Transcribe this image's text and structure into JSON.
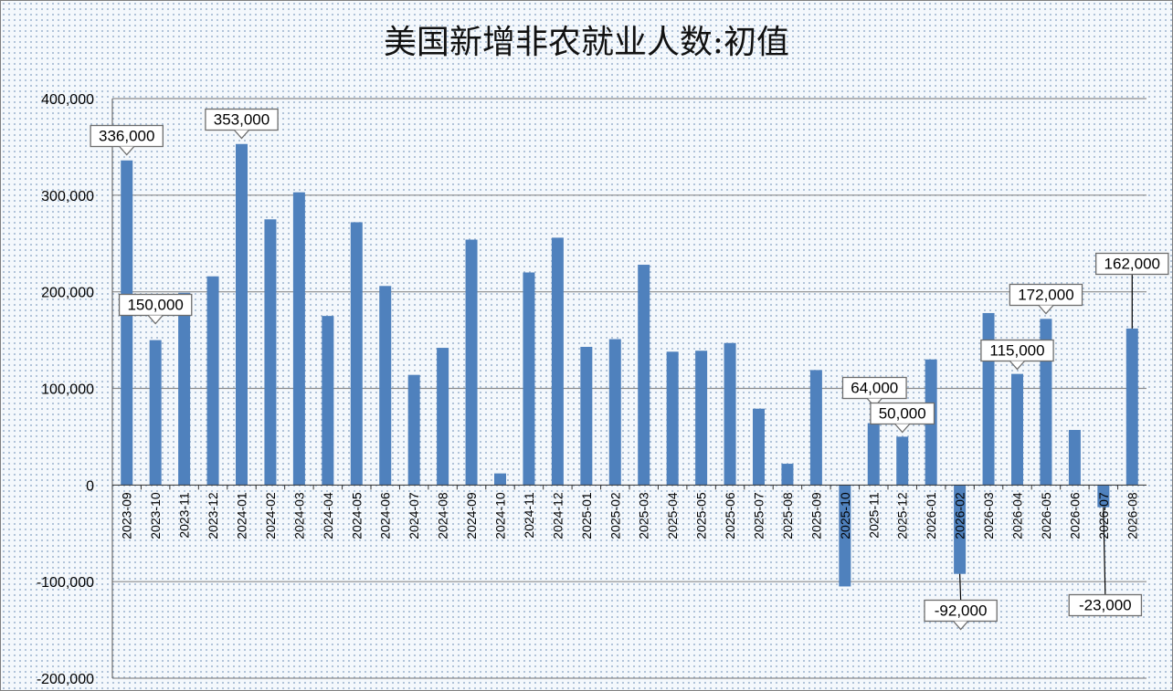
{
  "chart_data": {
    "type": "bar",
    "title": "美国新增非农就业人数:初值",
    "ylim": [
      -200000,
      400000
    ],
    "yticks": [
      400000,
      300000,
      200000,
      100000,
      0,
      -100000,
      -200000
    ],
    "ytick_labels": [
      "400,000",
      "300,000",
      "200,000",
      "100,000",
      "0",
      "-100,000",
      "-200,000"
    ],
    "grid": true,
    "legend": "none",
    "bar_color": "#4f81bd",
    "categories": [
      "2023-09",
      "2023-10",
      "2023-11",
      "2023-12",
      "2024-01",
      "2024-02",
      "2024-03",
      "2024-04",
      "2024-05",
      "2024-06",
      "2024-07",
      "2024-08",
      "2024-09",
      "2024-10",
      "2024-11",
      "2024-12",
      "2025-01",
      "2025-02",
      "2025-03",
      "2025-04",
      "2025-05",
      "2025-06",
      "2025-07",
      "2025-08",
      "2025-09",
      "2025-10",
      "2025-11",
      "2025-12",
      "2026-01",
      "2026-02",
      "2026-03",
      "2026-04",
      "2026-05",
      "2026-06",
      "2026-07",
      "2026-08"
    ],
    "values": [
      336000,
      150000,
      199000,
      216000,
      353000,
      275000,
      303000,
      175000,
      272000,
      206000,
      114000,
      142000,
      254000,
      12000,
      220000,
      256000,
      143000,
      151000,
      228000,
      138000,
      139000,
      147000,
      79000,
      22000,
      119000,
      -105000,
      64000,
      50000,
      130000,
      -92000,
      178000,
      115000,
      172000,
      57000,
      -23000,
      162000
    ],
    "data_labels": [
      {
        "category": "2023-09",
        "text": "336,000"
      },
      {
        "category": "2023-10",
        "text": "150,000"
      },
      {
        "category": "2024-01",
        "text": "353,000"
      },
      {
        "category": "2025-11",
        "text": "64,000"
      },
      {
        "category": "2025-12",
        "text": "50,000"
      },
      {
        "category": "2026-02",
        "text": "-92,000"
      },
      {
        "category": "2026-04",
        "text": "115,000"
      },
      {
        "category": "2026-05",
        "text": "172,000"
      },
      {
        "category": "2026-07",
        "text": "-23,000"
      },
      {
        "category": "2026-08",
        "text": "162,000"
      }
    ]
  }
}
